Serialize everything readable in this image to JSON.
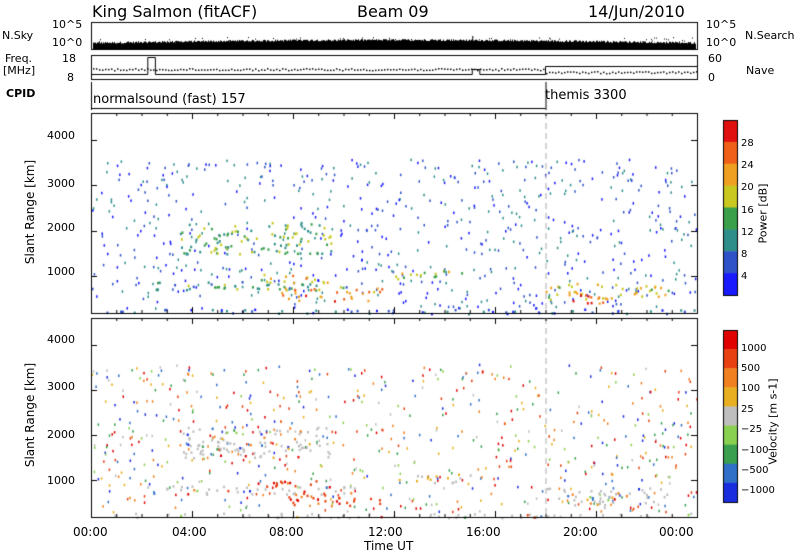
{
  "header": {
    "station": "King Salmon (fitACF)",
    "beam": "Beam 09",
    "date": "14/Jun/2010"
  },
  "aux_panel": {
    "nsky_label": "N.Sky",
    "nsky_tick_top": "10^5",
    "nsky_tick_bottom": "10^0",
    "nsearch_tick_top": "10^5",
    "nsearch_tick_bottom": "10^0",
    "nsearch_label": "N.Search",
    "freq_label": "Freq.",
    "freq_unit": "[MHz]",
    "freq_tick_top": "18",
    "freq_tick_bottom": "8",
    "nave_tick_top": "60",
    "nave_tick_bottom": "0",
    "nave_label": "Nave",
    "cpid_label": "CPID",
    "cpid_1": "normalsound (fast) 157",
    "cpid_2": "themis 3300"
  },
  "chart_data": [
    {
      "type": "heatmap",
      "title": "",
      "xlabel": "Time UT",
      "ylabel": "Slant Range [km]",
      "x_range_hours": [
        0,
        24
      ],
      "ylim": [
        180,
        4600
      ],
      "y_ticks": [
        "1000",
        "2000",
        "3000",
        "4000"
      ],
      "x_ticks": [
        "00:00",
        "04:00",
        "08:00",
        "12:00",
        "16:00",
        "20:00",
        "00:00"
      ],
      "mode_change_hour": 18,
      "colorbar": {
        "label": "Power [dB]",
        "ticks": [
          "4",
          "8",
          "12",
          "16",
          "20",
          "24",
          "28"
        ],
        "range": [
          0,
          30
        ]
      },
      "series_description_regions": [
        {
          "t": [
            0,
            24
          ],
          "r": [
            180,
            280
          ],
          "level": 6
        },
        {
          "t": [
            2.2,
            10.5
          ],
          "r": [
            700,
            900
          ],
          "level": 12
        },
        {
          "t": [
            6.5,
            9.5
          ],
          "r": [
            850,
            1050
          ],
          "level": 20
        },
        {
          "t": [
            3.5,
            9.5
          ],
          "r": [
            1500,
            2200
          ],
          "level": 14
        },
        {
          "t": [
            7.5,
            11.5
          ],
          "r": [
            450,
            750
          ],
          "level": 24
        },
        {
          "t": [
            12,
            15
          ],
          "r": [
            950,
            1150
          ],
          "level": 18
        },
        {
          "t": [
            18,
            23
          ],
          "r": [
            500,
            850
          ],
          "level": 20
        },
        {
          "t": [
            19,
            21
          ],
          "r": [
            400,
            600
          ],
          "level": 28
        }
      ]
    },
    {
      "type": "heatmap",
      "title": "",
      "xlabel": "Time UT",
      "ylabel": "Slant Range [km]",
      "x_range_hours": [
        0,
        24
      ],
      "ylim": [
        180,
        4600
      ],
      "y_ticks": [
        "1000",
        "2000",
        "3000",
        "4000"
      ],
      "x_ticks": [
        "00:00",
        "04:00",
        "08:00",
        "12:00",
        "16:00",
        "20:00",
        "00:00"
      ],
      "mode_change_hour": 18,
      "colorbar": {
        "label": "Velocity [m s-1]",
        "ticks": [
          "1000",
          "500",
          "100",
          "25",
          "−25",
          "−100",
          "−500",
          "−1000"
        ]
      }
    }
  ],
  "colors": {
    "power_scale": [
      "#1a1aff",
      "#2f52c8",
      "#2e8f8a",
      "#3aa04a",
      "#c8c820",
      "#f0a020",
      "#f06018",
      "#e01010"
    ],
    "velocity_scale": [
      "#1a2ee0",
      "#3070c8",
      "#3aa050",
      "#8ad050",
      "#bebebe",
      "#e8b020",
      "#f08020",
      "#e84010",
      "#e00000"
    ],
    "ground_scatter": "#bebebe"
  }
}
